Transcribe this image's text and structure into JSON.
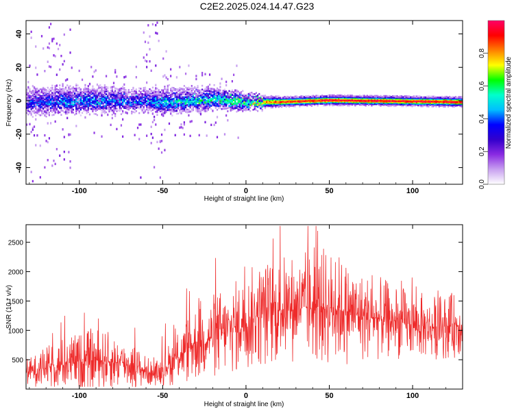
{
  "title": "C2E2.2025.024.14.47.G23",
  "chart_data": [
    {
      "type": "heatmap",
      "xlabel": "Height of straight line (km)",
      "ylabel": "Frequency (Hz)",
      "xlim": [
        -132,
        130
      ],
      "ylim": [
        -50,
        48
      ],
      "xticks": [
        -100,
        -50,
        0,
        50,
        100
      ],
      "yticks": [
        -40,
        -20,
        0,
        20,
        40
      ],
      "colorbar": {
        "label": "Normalized spectral amplitude",
        "range": [
          0,
          1
        ],
        "ticks": [
          "0.0",
          "0.2",
          "0.4",
          "0.6",
          "0.8"
        ],
        "colors": [
          "#ffffff",
          "#c8a0f0",
          "#8a2be2",
          "#3300cc",
          "#0000ff",
          "#00bfff",
          "#00ffcc",
          "#00ff00",
          "#ffff00",
          "#ff8000",
          "#ff0000",
          "#ff0066"
        ]
      },
      "band_profile": [
        {
          "x": -130,
          "center_freq": 0,
          "halfwidth": 5,
          "peak_amp": 0.35
        },
        {
          "x": -100,
          "center_freq": 1,
          "halfwidth": 5,
          "peak_amp": 0.45
        },
        {
          "x": -60,
          "center_freq": 1,
          "halfwidth": 4,
          "peak_amp": 0.4
        },
        {
          "x": -50,
          "center_freq": 0,
          "halfwidth": 5,
          "peak_amp": 0.5
        },
        {
          "x": -20,
          "center_freq": 2,
          "halfwidth": 4,
          "peak_amp": 0.55
        },
        {
          "x": 0,
          "center_freq": 0,
          "halfwidth": 3,
          "peak_amp": 0.65
        },
        {
          "x": 20,
          "center_freq": 0,
          "halfwidth": 2,
          "peak_amp": 0.9
        },
        {
          "x": 50,
          "center_freq": 1,
          "halfwidth": 2,
          "peak_amp": 0.95
        },
        {
          "x": 130,
          "center_freq": 0,
          "halfwidth": 2,
          "peak_amp": 0.95
        }
      ]
    },
    {
      "type": "line",
      "xlabel": "Height of straight line (km)",
      "ylabel": "SNR (10 * v/v)",
      "xlim": [
        -132,
        130
      ],
      "ylim": [
        0,
        2800
      ],
      "xticks": [
        -100,
        -50,
        0,
        50,
        100
      ],
      "yticks": [
        500,
        1000,
        1500,
        2000,
        2500
      ],
      "color": "#ee2a2a",
      "envelope": [
        {
          "x": -130,
          "mean": 300,
          "spread": 150
        },
        {
          "x": -110,
          "mean": 420,
          "spread": 300
        },
        {
          "x": -90,
          "mean": 500,
          "spread": 350
        },
        {
          "x": -70,
          "mean": 420,
          "spread": 280
        },
        {
          "x": -55,
          "mean": 250,
          "spread": 120
        },
        {
          "x": -45,
          "mean": 450,
          "spread": 250
        },
        {
          "x": -30,
          "mean": 800,
          "spread": 450
        },
        {
          "x": -10,
          "mean": 1000,
          "spread": 500
        },
        {
          "x": 10,
          "mean": 1300,
          "spread": 600
        },
        {
          "x": 30,
          "mean": 1400,
          "spread": 600
        },
        {
          "x": 50,
          "mean": 1400,
          "spread": 650
        },
        {
          "x": 70,
          "mean": 1250,
          "spread": 500
        },
        {
          "x": 90,
          "mean": 1150,
          "spread": 400
        },
        {
          "x": 110,
          "mean": 1050,
          "spread": 350
        },
        {
          "x": 130,
          "mean": 1100,
          "spread": 350
        }
      ]
    }
  ]
}
